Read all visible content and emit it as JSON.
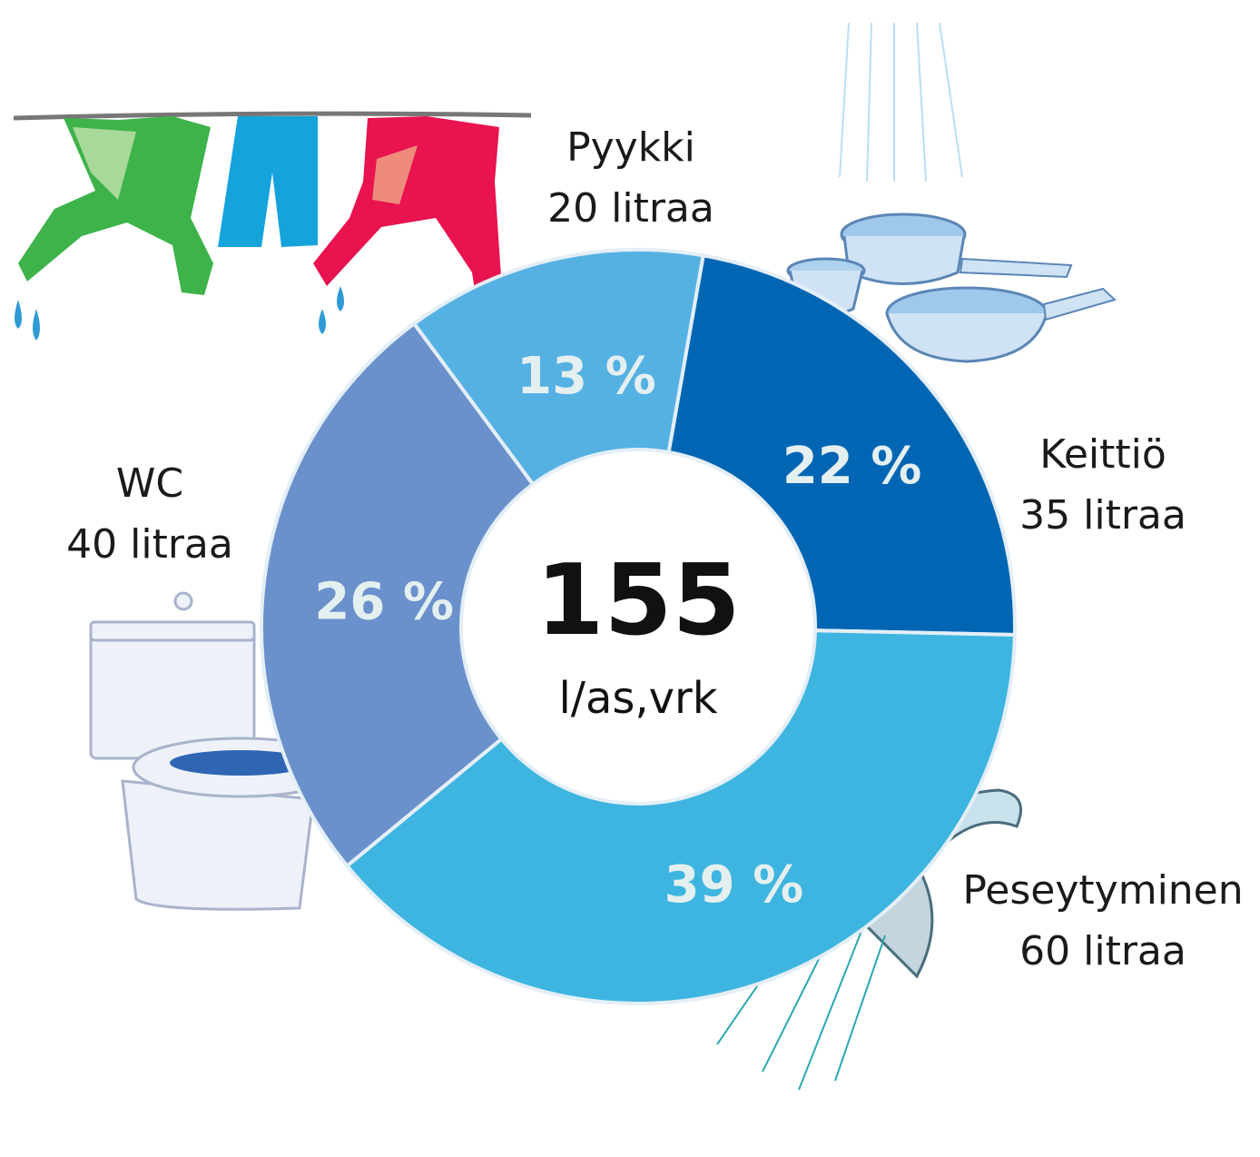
{
  "chart_data": {
    "type": "donut",
    "categories": [
      "Pyykki",
      "Keittiö",
      "Peseytyminen",
      "WC"
    ],
    "values": [
      20,
      35,
      60,
      40
    ],
    "value_labels": [
      "20 litraa",
      "35 litraa",
      "60 litraa",
      "40 litraa"
    ],
    "shares": [
      13,
      22,
      39,
      26
    ],
    "share_labels": [
      "13 %",
      "22 %",
      "39 %",
      "26 %"
    ],
    "colors": [
      "#56b1e3",
      "#0066b3",
      "#3db5e0",
      "#6a91cb"
    ],
    "total": 155,
    "total_unit": "l/as,vrk"
  }
}
